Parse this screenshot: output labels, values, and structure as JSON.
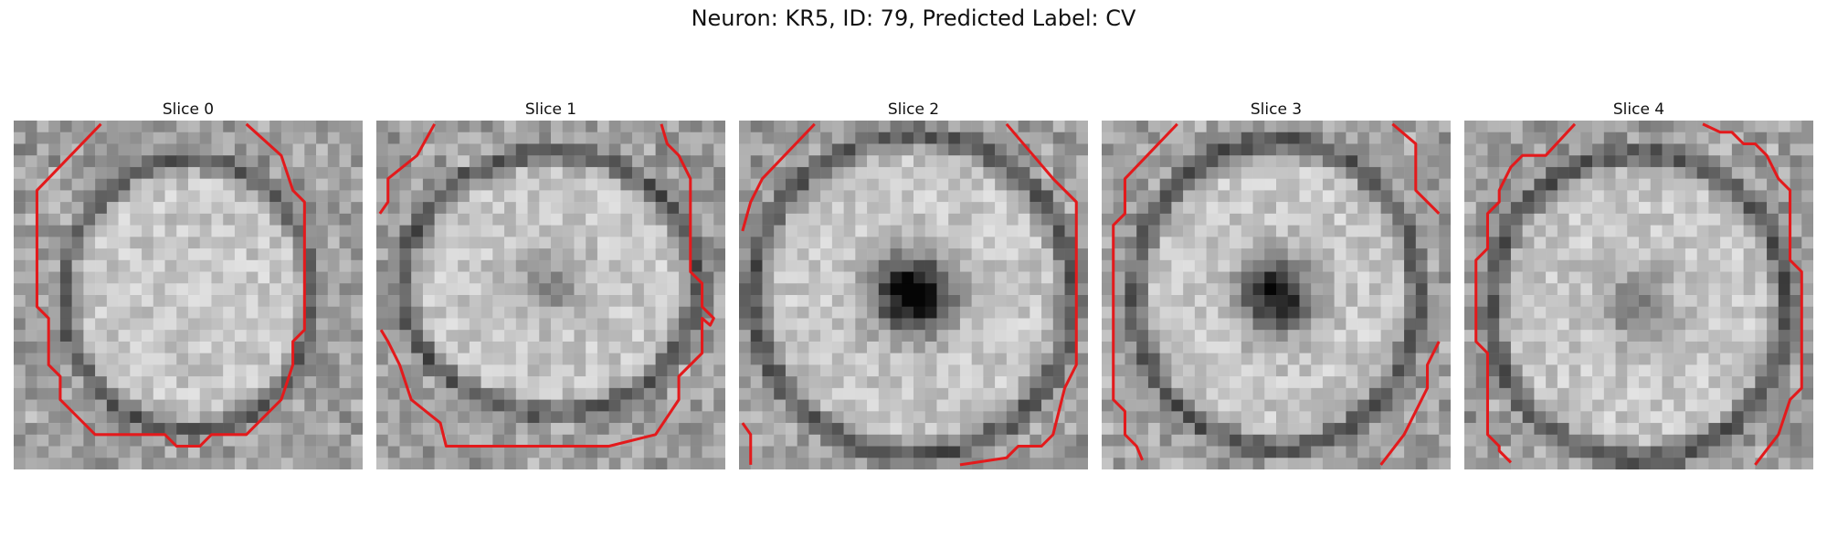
{
  "figure": {
    "title": "Neuron: KR5, ID: 79, Predicted Label: CV"
  },
  "panels": [
    {
      "title": "Slice 0",
      "image": "grayscale neuron slice 0",
      "contour_color": "#e31a1c"
    },
    {
      "title": "Slice 1",
      "image": "grayscale neuron slice 1",
      "contour_color": "#e31a1c"
    },
    {
      "title": "Slice 2",
      "image": "grayscale neuron slice 2",
      "contour_color": "#e31a1c"
    },
    {
      "title": "Slice 3",
      "image": "grayscale neuron slice 3",
      "contour_color": "#e31a1c"
    },
    {
      "title": "Slice 4",
      "image": "grayscale neuron slice 4",
      "contour_color": "#e31a1c"
    }
  ]
}
